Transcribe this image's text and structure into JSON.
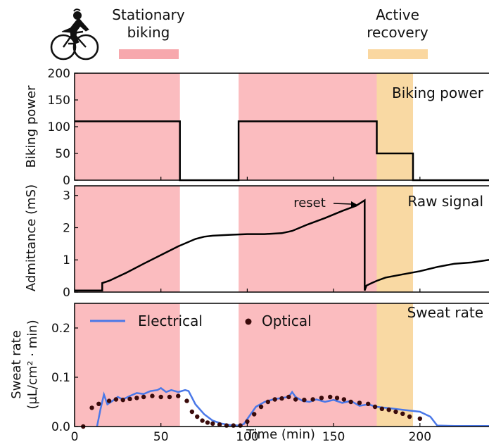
{
  "legend_key": {
    "stationary": {
      "label_line1": "Stationary",
      "label_line2": "biking",
      "color": "#f7a8ad"
    },
    "recovery": {
      "label_line1": "Active",
      "label_line2": "recovery",
      "color": "#fad7a0"
    }
  },
  "icon": "cyclist-icon",
  "colors": {
    "stationary_band": "#fbbcbf",
    "recovery_band": "#f9d9a3",
    "power_line": "#000000",
    "admittance_line": "#000000",
    "electrical_line": "#4a78e8",
    "optical_dot": "#3a0b0b",
    "axis": "#000000"
  },
  "chart_data": [
    {
      "type": "line",
      "panel_title": "Biking power",
      "ylabel": "Biking power",
      "xlim": [
        0,
        240
      ],
      "ylim": [
        0,
        200
      ],
      "yticks": [
        0,
        50,
        100,
        150,
        200
      ],
      "bands": [
        {
          "kind": "stationary",
          "x": [
            0,
            61
          ]
        },
        {
          "kind": "stationary",
          "x": [
            95,
            175
          ]
        },
        {
          "kind": "recovery",
          "x": [
            175,
            196
          ]
        }
      ],
      "series": [
        {
          "x": [
            0,
            61,
            61,
            95,
            95,
            175,
            175,
            196,
            196,
            240
          ],
          "y": [
            110,
            110,
            0,
            0,
            110,
            110,
            50,
            50,
            0,
            0
          ]
        }
      ]
    },
    {
      "type": "line",
      "panel_title": "Raw signal",
      "ylabel": "Admittance (mS)",
      "xlim": [
        0,
        240
      ],
      "ylim": [
        0,
        3.3
      ],
      "yticks": [
        0,
        1,
        2,
        3
      ],
      "annotation": {
        "text": "reset",
        "x": 168,
        "y": 2.85
      },
      "bands": [
        {
          "kind": "stationary",
          "x": [
            0,
            61
          ]
        },
        {
          "kind": "stationary",
          "x": [
            95,
            175
          ]
        },
        {
          "kind": "recovery",
          "x": [
            175,
            196
          ]
        }
      ],
      "series": [
        {
          "x": [
            0,
            16,
            16,
            20,
            30,
            40,
            50,
            60,
            70,
            75,
            80,
            90,
            100,
            110,
            120,
            126,
            135,
            145,
            155,
            163,
            168,
            168,
            169,
            172,
            175,
            180,
            190,
            200,
            210,
            220,
            230,
            240
          ],
          "y": [
            0.05,
            0.05,
            0.28,
            0.35,
            0.6,
            0.88,
            1.15,
            1.42,
            1.65,
            1.72,
            1.75,
            1.78,
            1.8,
            1.8,
            1.83,
            1.9,
            2.1,
            2.3,
            2.52,
            2.68,
            2.85,
            0.05,
            0.2,
            0.28,
            0.35,
            0.45,
            0.55,
            0.65,
            0.78,
            0.88,
            0.92,
            1.0
          ]
        }
      ]
    },
    {
      "type": "line",
      "panel_title": "Sweat rate",
      "ylabel_line1": "Sweat rate",
      "ylabel_line2": "(μL/cm² · min)",
      "xlabel": "Time (min)",
      "xlim": [
        0,
        240
      ],
      "ylim": [
        0,
        0.25
      ],
      "xticks": [
        0,
        50,
        100,
        150,
        200
      ],
      "yticks": [
        0.0,
        0.1,
        0.2
      ],
      "ytick_labels": [
        "0.0",
        "0.1",
        "0.2"
      ],
      "bands": [
        {
          "kind": "stationary",
          "x": [
            0,
            61
          ]
        },
        {
          "kind": "stationary",
          "x": [
            95,
            175
          ]
        },
        {
          "kind": "recovery",
          "x": [
            175,
            196
          ]
        }
      ],
      "series": [
        {
          "name": "Electrical",
          "kind": "line",
          "x": [
            13,
            15,
            17,
            19,
            22,
            25,
            28,
            32,
            36,
            40,
            44,
            48,
            50,
            53,
            56,
            60,
            64,
            66,
            70,
            75,
            80,
            85,
            90,
            95,
            98,
            100,
            105,
            110,
            115,
            120,
            124,
            126,
            128,
            132,
            136,
            140,
            145,
            150,
            155,
            160,
            165,
            170,
            175,
            180,
            185,
            190,
            195,
            200,
            203,
            206,
            210,
            220,
            240
          ],
          "y": [
            0.0,
            0.035,
            0.065,
            0.045,
            0.052,
            0.06,
            0.055,
            0.062,
            0.068,
            0.066,
            0.072,
            0.074,
            0.078,
            0.07,
            0.074,
            0.07,
            0.074,
            0.072,
            0.045,
            0.025,
            0.012,
            0.006,
            0.003,
            0.002,
            0.005,
            0.015,
            0.04,
            0.05,
            0.055,
            0.058,
            0.06,
            0.07,
            0.06,
            0.052,
            0.05,
            0.055,
            0.05,
            0.054,
            0.048,
            0.052,
            0.042,
            0.045,
            0.04,
            0.038,
            0.036,
            0.034,
            0.032,
            0.03,
            0.025,
            0.02,
            0.002,
            0.001,
            0.001
          ]
        },
        {
          "name": "Optical",
          "kind": "scatter",
          "x": [
            5,
            10,
            14,
            20,
            24,
            28,
            32,
            36,
            40,
            45,
            50,
            55,
            60,
            65,
            68,
            71,
            74,
            77,
            80,
            84,
            88,
            92,
            96,
            100,
            104,
            108,
            112,
            116,
            120,
            124,
            128,
            133,
            138,
            143,
            148,
            152,
            156,
            160,
            165,
            170,
            174,
            178,
            182,
            186,
            190,
            194,
            200
          ],
          "y": [
            0.0,
            0.038,
            0.046,
            0.052,
            0.055,
            0.054,
            0.056,
            0.058,
            0.06,
            0.062,
            0.06,
            0.06,
            0.062,
            0.052,
            0.03,
            0.02,
            0.012,
            0.008,
            0.006,
            0.004,
            0.002,
            0.002,
            0.002,
            0.01,
            0.025,
            0.04,
            0.05,
            0.055,
            0.057,
            0.06,
            0.055,
            0.054,
            0.055,
            0.058,
            0.06,
            0.058,
            0.055,
            0.05,
            0.048,
            0.046,
            0.04,
            0.036,
            0.034,
            0.03,
            0.026,
            0.02,
            0.016
          ]
        }
      ]
    }
  ]
}
